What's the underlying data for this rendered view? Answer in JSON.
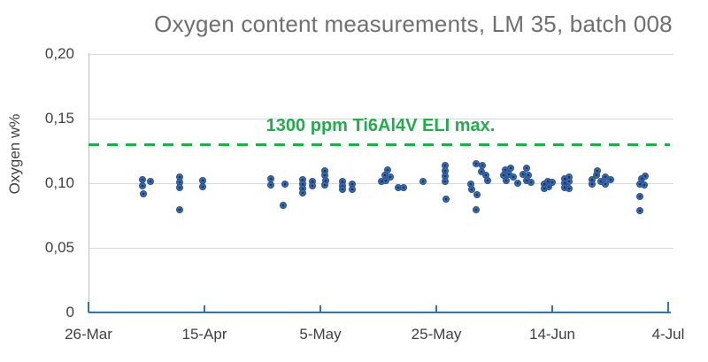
{
  "chart_data": {
    "type": "scatter",
    "title": "Oxygen content measurements, LM 35, batch 008",
    "xlabel": "",
    "ylabel": "Oxygen w%",
    "grid": true,
    "legend_position": "none",
    "x_axis": {
      "unit": "date",
      "tick_labels": [
        "26-Mar",
        "15-Apr",
        "5-May",
        "25-May",
        "14-Jun",
        "4-Jul"
      ],
      "tick_days_after_first": [
        0,
        20,
        40,
        60,
        80,
        100
      ]
    },
    "y_axis": {
      "range": [
        0,
        0.2
      ],
      "ticks": [
        {
          "value": 0.2,
          "label": "0,20"
        },
        {
          "value": 0.15,
          "label": "0,15"
        },
        {
          "value": 0.1,
          "label": "0,10"
        },
        {
          "value": 0.05,
          "label": "0,05"
        },
        {
          "value": 0,
          "label": "0"
        }
      ]
    },
    "reference_line": {
      "value": 0.13,
      "label": "1300 ppm Ti6Al4V ELI max.",
      "style": "dashed",
      "color": "#1fae4b"
    },
    "series": [
      {
        "name": "Oxygen content measurements",
        "marker": "filled-circle",
        "color": "#3a6db3",
        "points_format": [
          "days_after_26_mar",
          "oxygen_w_percent"
        ],
        "points": [
          [
            9.3,
            0.1027
          ],
          [
            10.7,
            0.1014
          ],
          [
            9.3,
            0.0979
          ],
          [
            9.5,
            0.0918
          ],
          [
            15.7,
            0.1048
          ],
          [
            15.7,
            0.1007
          ],
          [
            15.7,
            0.0966
          ],
          [
            15.7,
            0.0795
          ],
          [
            19.7,
            0.1021
          ],
          [
            19.7,
            0.0973
          ],
          [
            31.5,
            0.1034
          ],
          [
            31.5,
            0.0986
          ],
          [
            33.9,
            0.0993
          ],
          [
            33.6,
            0.0829
          ],
          [
            36.9,
            0.1027
          ],
          [
            36.9,
            0.0993
          ],
          [
            36.9,
            0.0959
          ],
          [
            36.9,
            0.0925
          ],
          [
            38.6,
            0.1014
          ],
          [
            38.6,
            0.0979
          ],
          [
            40.8,
            0.1096
          ],
          [
            40.8,
            0.1062
          ],
          [
            40.9,
            0.1021
          ],
          [
            40.8,
            0.0986
          ],
          [
            43.8,
            0.1014
          ],
          [
            43.8,
            0.0979
          ],
          [
            43.8,
            0.0952
          ],
          [
            45.5,
            0.0993
          ],
          [
            45.5,
            0.0952
          ],
          [
            51.6,
            0.1103
          ],
          [
            51.1,
            0.1062
          ],
          [
            52.1,
            0.1048
          ],
          [
            50.5,
            0.1014
          ],
          [
            51.3,
            0.1021
          ],
          [
            53.4,
            0.0966
          ],
          [
            54.4,
            0.0966
          ],
          [
            57.7,
            0.1014
          ],
          [
            61.5,
            0.1137
          ],
          [
            61.5,
            0.1096
          ],
          [
            61.5,
            0.1055
          ],
          [
            61.5,
            0.1014
          ],
          [
            61.7,
            0.0877
          ],
          [
            66.9,
            0.1151
          ],
          [
            67.9,
            0.1137
          ],
          [
            67.8,
            0.1089
          ],
          [
            68.5,
            0.1062
          ],
          [
            68.9,
            0.1021
          ],
          [
            66.0,
            0.0993
          ],
          [
            66.1,
            0.0952
          ],
          [
            67.0,
            0.0911
          ],
          [
            66.9,
            0.0795
          ],
          [
            71.9,
            0.1103
          ],
          [
            72.8,
            0.1116
          ],
          [
            71.6,
            0.1062
          ],
          [
            72.5,
            0.1068
          ],
          [
            73.3,
            0.1048
          ],
          [
            72.1,
            0.1021
          ],
          [
            74.0,
            0.1
          ],
          [
            75.6,
            0.1116
          ],
          [
            75.0,
            0.1068
          ],
          [
            75.9,
            0.1062
          ],
          [
            75.6,
            0.1021
          ],
          [
            76.3,
            0.1007
          ],
          [
            78.6,
            0.0993
          ],
          [
            79.2,
            0.1014
          ],
          [
            78.6,
            0.0959
          ],
          [
            79.4,
            0.0973
          ],
          [
            80.0,
            0.1007
          ],
          [
            82.1,
            0.1034
          ],
          [
            82.1,
            0.1
          ],
          [
            82.1,
            0.0966
          ],
          [
            82.9,
            0.1048
          ],
          [
            82.9,
            0.1014
          ],
          [
            82.9,
            0.0959
          ],
          [
            86.9,
            0.1027
          ],
          [
            86.9,
            0.0993
          ],
          [
            87.6,
            0.1062
          ],
          [
            87.8,
            0.1096
          ],
          [
            88.4,
            0.1014
          ],
          [
            89.2,
            0.1048
          ],
          [
            89.2,
            0.0993
          ],
          [
            90.1,
            0.1027
          ],
          [
            95.4,
            0.1034
          ],
          [
            96.0,
            0.1055
          ],
          [
            95.1,
            0.0993
          ],
          [
            95.9,
            0.0986
          ],
          [
            95.1,
            0.0897
          ],
          [
            95.1,
            0.0788
          ]
        ]
      }
    ]
  },
  "colors": {
    "background": "#ffffff",
    "title_text": "#6f6f6f",
    "axis_text": "#3f3f3f",
    "gridline": "#d9d9d9",
    "y_axis_line": "#bfbfbf",
    "x_axis_line": "#2f74b5",
    "marker_fill": "#3a6db3",
    "marker_border": "#274f8d",
    "marker_center": "#16345c",
    "reference_green": "#1fae4b"
  }
}
